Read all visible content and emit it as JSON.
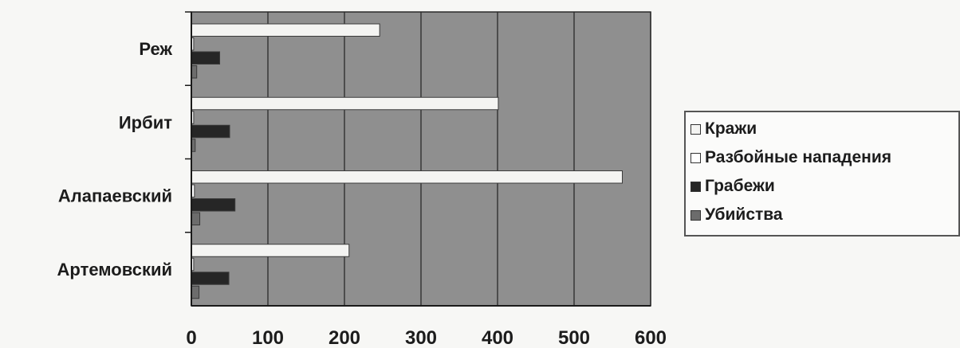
{
  "chart_data": {
    "type": "bar",
    "orientation": "horizontal",
    "categories": [
      "Реж",
      "Ирбит",
      "Алапаевский",
      "Артемовский"
    ],
    "series": [
      {
        "name": "Кражи",
        "values": [
          246,
          401,
          563,
          206
        ],
        "color": "#f4f4f2"
      },
      {
        "name": "Разбойные нападения",
        "values": [
          3,
          3,
          4,
          3
        ],
        "color": "#ffffff"
      },
      {
        "name": "Грабежи",
        "values": [
          37,
          50,
          57,
          49
        ],
        "color": "#262626"
      },
      {
        "name": "Убийства",
        "values": [
          7,
          5,
          11,
          10
        ],
        "color": "#6c6c6c"
      }
    ],
    "xlim": [
      0,
      600
    ],
    "xticks": [
      "0",
      "100",
      "200",
      "300",
      "400",
      "500",
      "600"
    ],
    "grid": true,
    "legend": "right",
    "title": "",
    "xlabel": "",
    "ylabel": "",
    "plot_background": "#8f8f8f",
    "gridline_color": "#2a2a2a"
  }
}
